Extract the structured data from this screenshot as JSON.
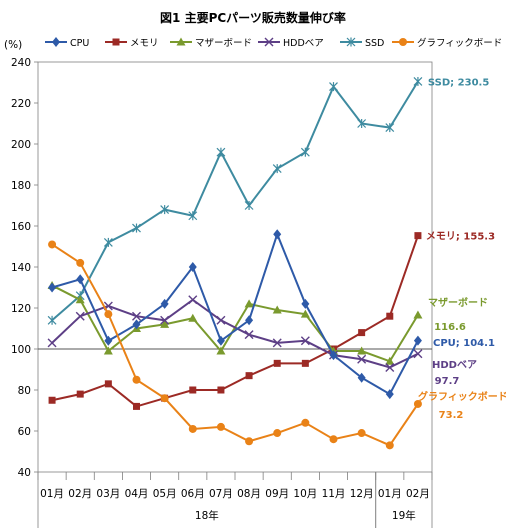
{
  "chart_data": {
    "type": "line",
    "title": "図1 主要PCパーツ販売数量伸び率",
    "ylabel_unit": "(%)",
    "ylim": [
      40,
      240
    ],
    "yticks": [
      40,
      60,
      80,
      100,
      120,
      140,
      160,
      180,
      200,
      220,
      240
    ],
    "categories": [
      "01月",
      "02月",
      "03月",
      "04月",
      "05月",
      "06月",
      "07月",
      "08月",
      "09月",
      "10月",
      "11月",
      "12月",
      "01月",
      "02月"
    ],
    "year_groups": [
      {
        "label": "18年",
        "count": 12
      },
      {
        "label": "19年",
        "count": 2
      }
    ],
    "reference_line": 100,
    "legend_position": "top",
    "series": [
      {
        "name": "CPU",
        "color": "#2e5aa8",
        "marker": "diamond",
        "values": [
          130,
          134,
          104,
          112,
          122,
          140,
          104,
          114,
          156,
          122,
          97,
          86,
          78,
          104.1
        ],
        "end_label": "CPU; 104.1"
      },
      {
        "name": "メモリ",
        "color": "#9c2a25",
        "marker": "square",
        "values": [
          75,
          78,
          83,
          72,
          76,
          80,
          80,
          87,
          93,
          93,
          100,
          108,
          116,
          155.3
        ],
        "end_label": "メモリ; 155.3"
      },
      {
        "name": "マザーボード",
        "color": "#7a9a2e",
        "marker": "triangle",
        "values": [
          131,
          124,
          99,
          110,
          112,
          115,
          99,
          122,
          119,
          117,
          99,
          99,
          94,
          116.6
        ],
        "end_label": "マザーボード 116.6"
      },
      {
        "name": "HDDベア",
        "color": "#5d3f86",
        "marker": "x",
        "values": [
          103,
          116,
          121,
          116,
          114,
          124,
          114,
          107,
          103,
          104,
          97,
          95,
          91,
          97.7
        ],
        "end_label": "HDDベア 97.7"
      },
      {
        "name": "SSD",
        "color": "#3e8ba0",
        "marker": "star",
        "values": [
          114,
          126,
          152,
          159,
          168,
          165,
          196,
          170,
          188,
          196,
          228,
          210,
          208,
          230.5
        ],
        "end_label": "SSD; 230.5"
      },
      {
        "name": "グラフィックボード",
        "color": "#e98217",
        "marker": "circle",
        "values": [
          151,
          142,
          117,
          85,
          76,
          61,
          62,
          55,
          59,
          64,
          56,
          59,
          53,
          73.2
        ],
        "end_label": "グラフィックボード 73.2"
      }
    ]
  }
}
